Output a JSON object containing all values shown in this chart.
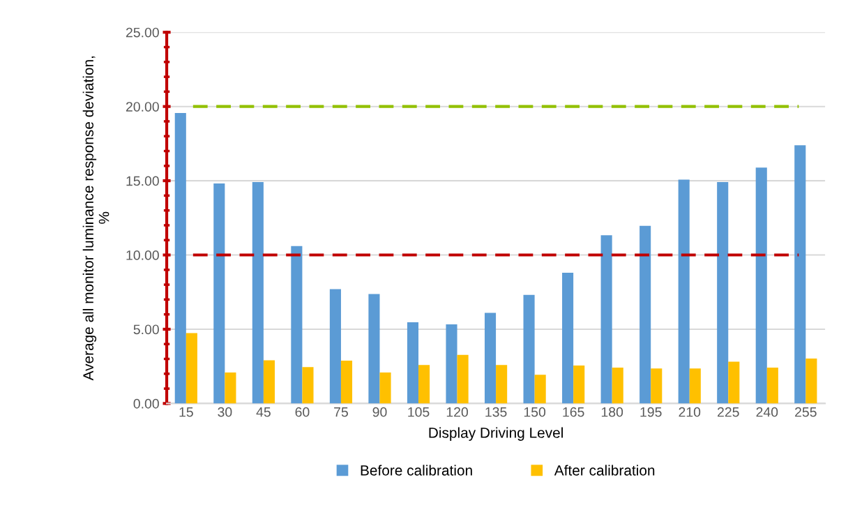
{
  "chart_data": {
    "type": "bar",
    "xlabel": "Display Driving Level",
    "ylabel": "Average all monitor luminance response deviation,\n%",
    "categories": [
      "15",
      "30",
      "45",
      "60",
      "75",
      "90",
      "105",
      "120",
      "135",
      "150",
      "165",
      "180",
      "195",
      "210",
      "225",
      "240",
      "255"
    ],
    "series": [
      {
        "name": "Before calibration",
        "color": "#5b9bd5",
        "values": [
          19.56,
          14.82,
          14.91,
          10.6,
          7.7,
          7.37,
          5.47,
          5.33,
          6.1,
          7.31,
          8.8,
          11.33,
          11.96,
          15.07,
          14.91,
          15.88,
          17.39
        ]
      },
      {
        "name": "After calibration",
        "color": "#ffc000",
        "values": [
          4.74,
          2.09,
          2.91,
          2.45,
          2.88,
          2.09,
          2.59,
          3.27,
          2.59,
          1.93,
          2.56,
          2.42,
          2.36,
          2.36,
          2.81,
          2.42,
          3.02
        ]
      }
    ],
    "ylim": [
      0,
      25
    ],
    "yticks": [
      {
        "value": 0,
        "label": "0.00"
      },
      {
        "value": 5,
        "label": "5.00"
      },
      {
        "value": 10,
        "label": "10.00"
      },
      {
        "value": 15,
        "label": "15.00"
      },
      {
        "value": 20,
        "label": "20.00"
      },
      {
        "value": 25,
        "label": "25.00"
      }
    ],
    "ref_lines": [
      {
        "axis": "y",
        "value": 20,
        "color": "#92c000",
        "line_style": "dashed"
      },
      {
        "axis": "y",
        "value": 10,
        "color": "#c00000",
        "line_style": "dashed"
      }
    ],
    "grid": "y",
    "legend": "bottom"
  }
}
